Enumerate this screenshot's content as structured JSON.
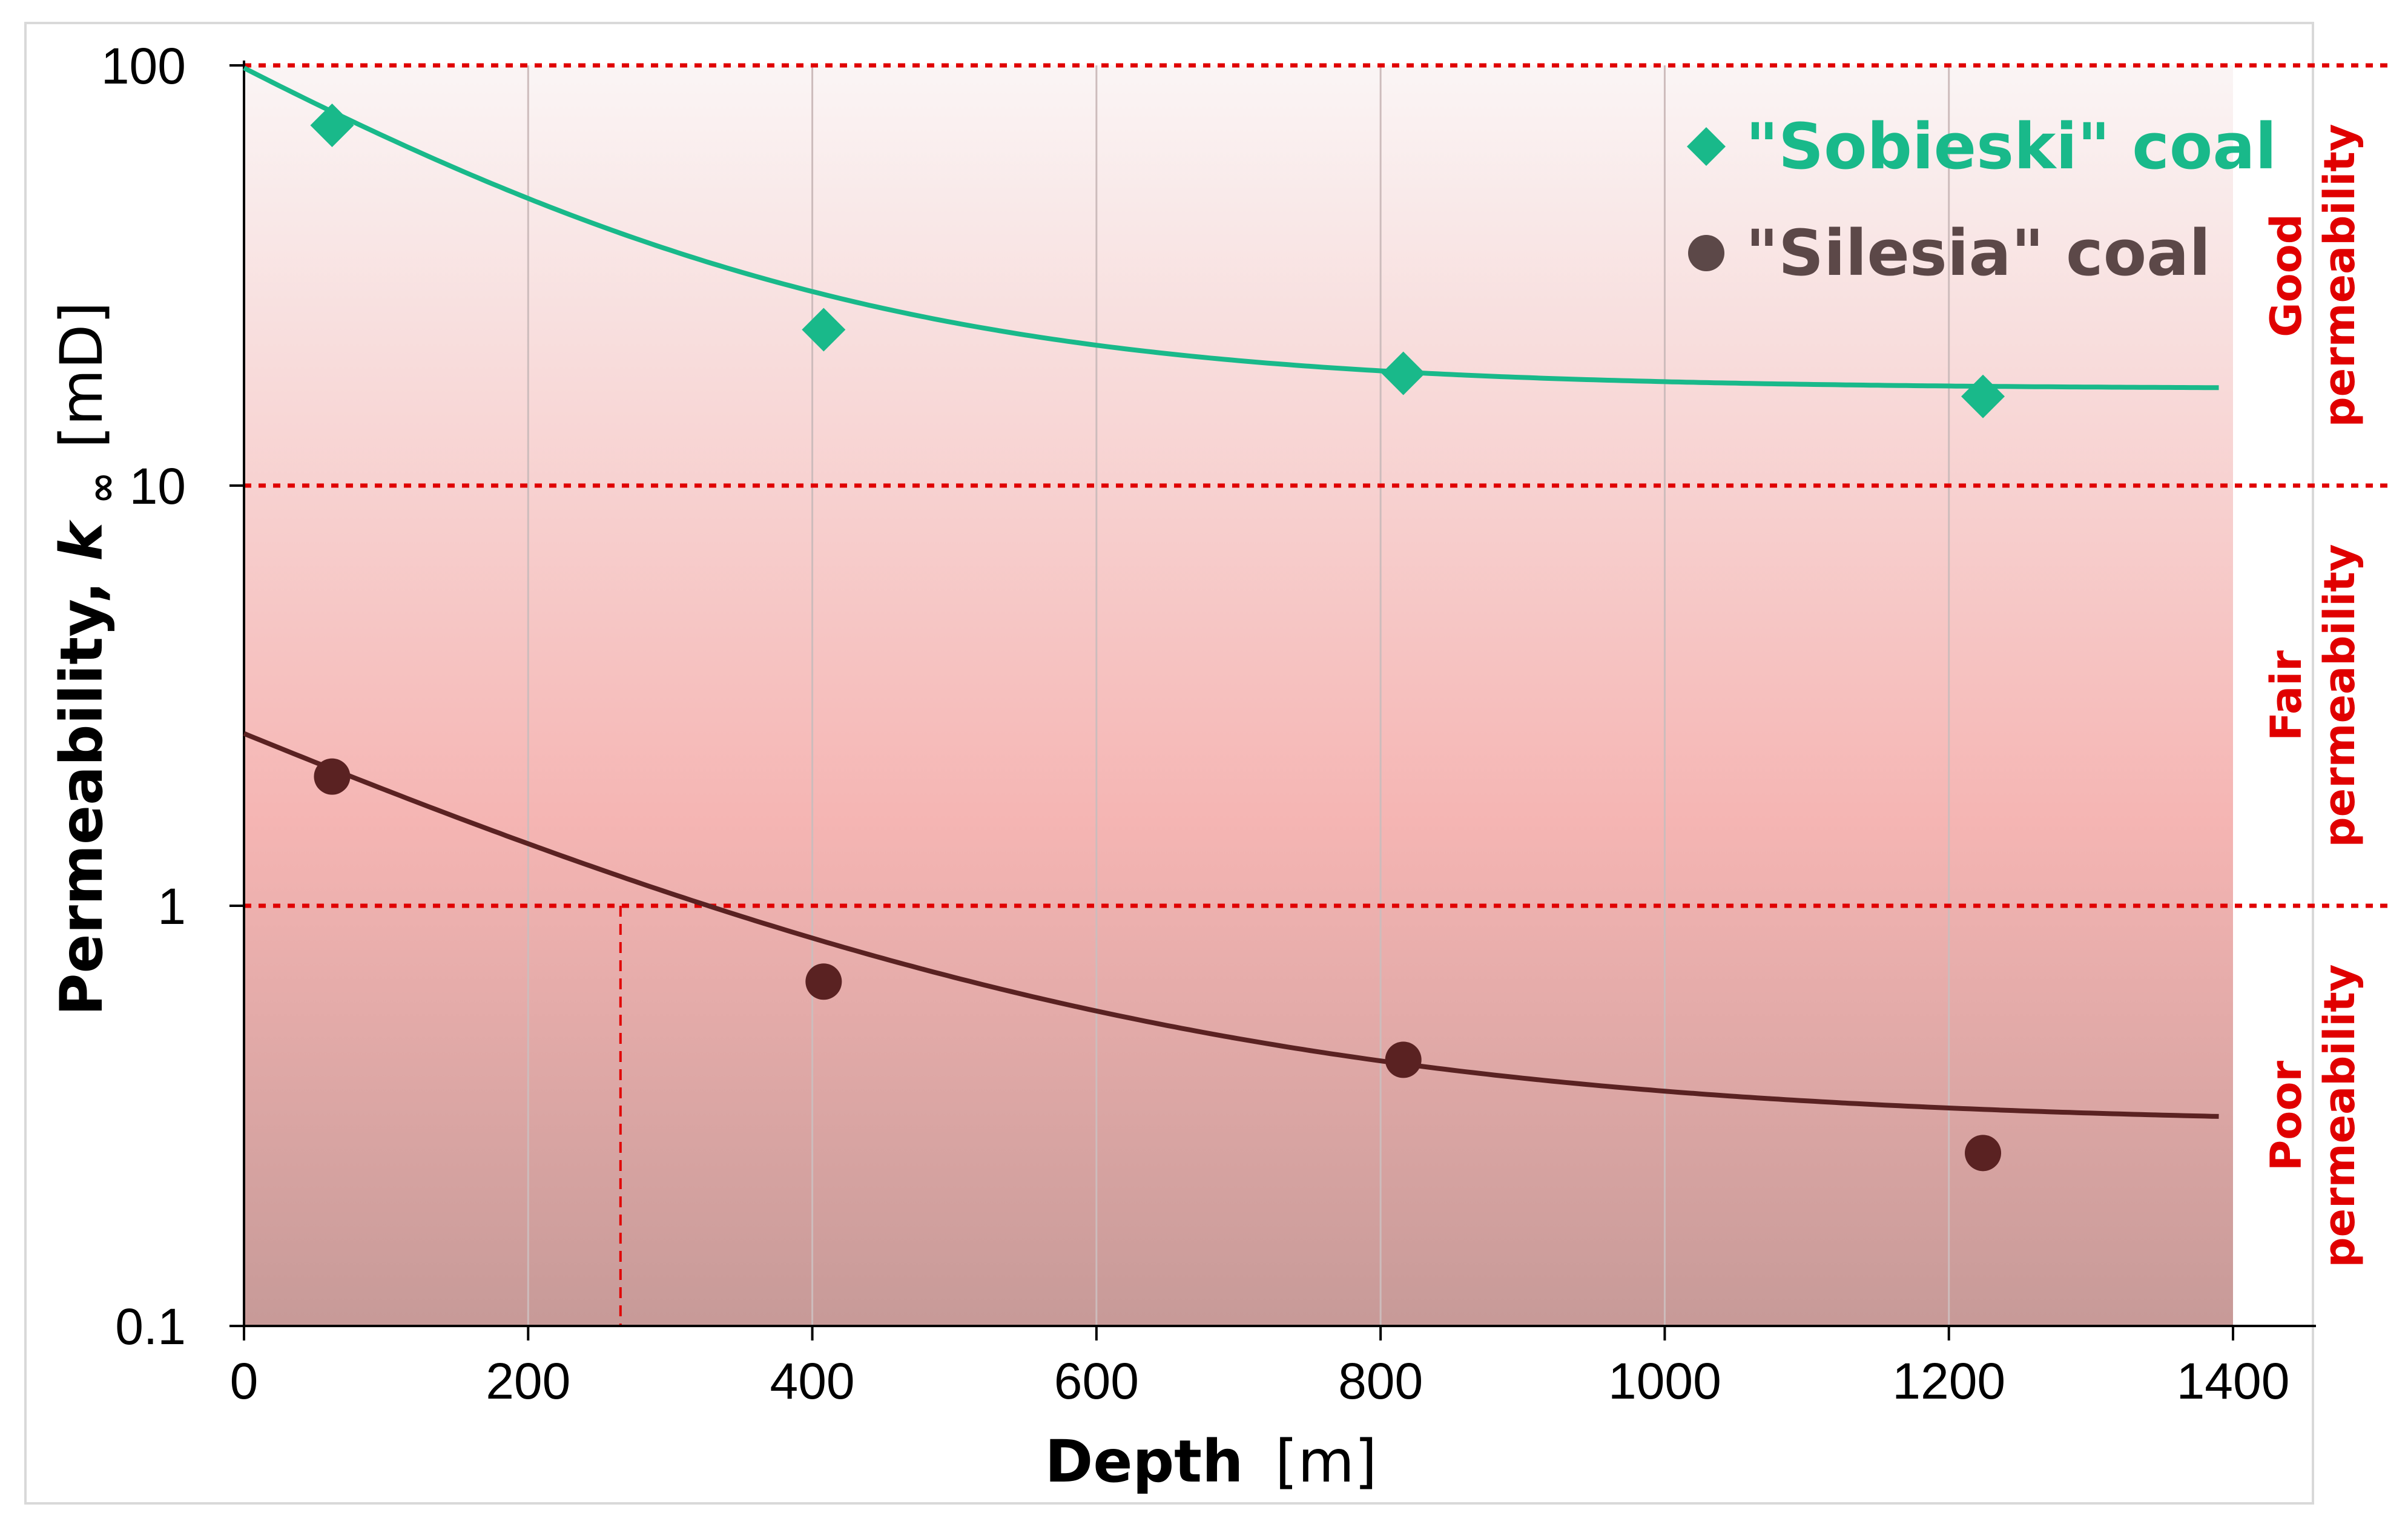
{
  "chart_data": {
    "type": "scatter",
    "title": "",
    "xlabel": {
      "bold": "Depth",
      "unit": "[m]"
    },
    "ylabel": {
      "bold": "Permeability, ",
      "symbol": "k",
      "subscript": "∞",
      "unit": "[mD]"
    },
    "x_ticks": [
      "0",
      "200",
      "400",
      "600",
      "800",
      "1000",
      "1200",
      "1400"
    ],
    "y_ticks": [
      "0.1",
      "1",
      "10",
      "100"
    ],
    "xlim": [
      0,
      1400
    ],
    "ylim": [
      0.1,
      100
    ],
    "yscale": "log",
    "grid": "vertical",
    "legend_position": "top-right",
    "series": [
      {
        "name": "\"Sobieski\" coal",
        "marker": "diamond",
        "color": "#19b98a",
        "points": [
          {
            "x": 62,
            "y": 72
          },
          {
            "x": 408,
            "y": 23.5
          },
          {
            "x": 816,
            "y": 18.5
          },
          {
            "x": 1224,
            "y": 16.3
          }
        ],
        "trend": {
          "kind": "exponential-decay",
          "a": 17.0,
          "b": 81.6,
          "c": 0.0048,
          "x_from": 0,
          "x_to": 1390
        }
      },
      {
        "name": "\"Silesia\" coal",
        "marker": "circle",
        "color": "#5a2222",
        "points": [
          {
            "x": 62,
            "y": 2.03
          },
          {
            "x": 408,
            "y": 0.66
          },
          {
            "x": 816,
            "y": 0.43
          },
          {
            "x": 1224,
            "y": 0.258
          }
        ],
        "trend": {
          "kind": "exponential-decay",
          "a": 0.3,
          "b": 2.27,
          "c": 0.0036,
          "x_from": 0,
          "x_to": 1390
        }
      }
    ],
    "threshold_lines": [
      100,
      10,
      1
    ],
    "reference_x": 265,
    "zones": [
      {
        "line1": "Good",
        "line2": "permeability",
        "y_from": 10,
        "y_to": 100
      },
      {
        "line1": "Fair",
        "line2": "permeability",
        "y_from": 1,
        "y_to": 10
      },
      {
        "line1": "Poor",
        "line2": "permeability",
        "y_from": 0.1,
        "y_to": 1
      }
    ],
    "colors": {
      "threshold": "#e00000",
      "grid": "#cdbcbc",
      "gradient_top": "#faf5f5",
      "gradient_mid": "#f5b5b3",
      "gradient_bottom": "#c79a98"
    }
  }
}
